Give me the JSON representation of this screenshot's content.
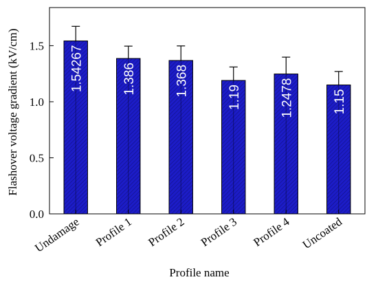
{
  "chart_data": {
    "type": "bar",
    "xlabel": "Profile name",
    "ylabel": "Flashover voltage gradient (kV/cm)",
    "categories": [
      "Undamage",
      "Profile 1",
      "Profile 2",
      "Profile 3",
      "Profile 4",
      "Uncoated"
    ],
    "values": [
      1.54267,
      1.386,
      1.368,
      1.19,
      1.2478,
      1.15
    ],
    "errors": [
      0.13,
      0.11,
      0.13,
      0.12,
      0.15,
      0.12
    ],
    "color": "#1c1cc8",
    "ylim": [
      0,
      1.84
    ],
    "yticks": [
      {
        "value": 0,
        "label": "0.0"
      },
      {
        "value": 0.5,
        "label": "0.5"
      },
      {
        "value": 1,
        "label": "1.0"
      },
      {
        "value": 1.5,
        "label": "1.5"
      }
    ]
  }
}
